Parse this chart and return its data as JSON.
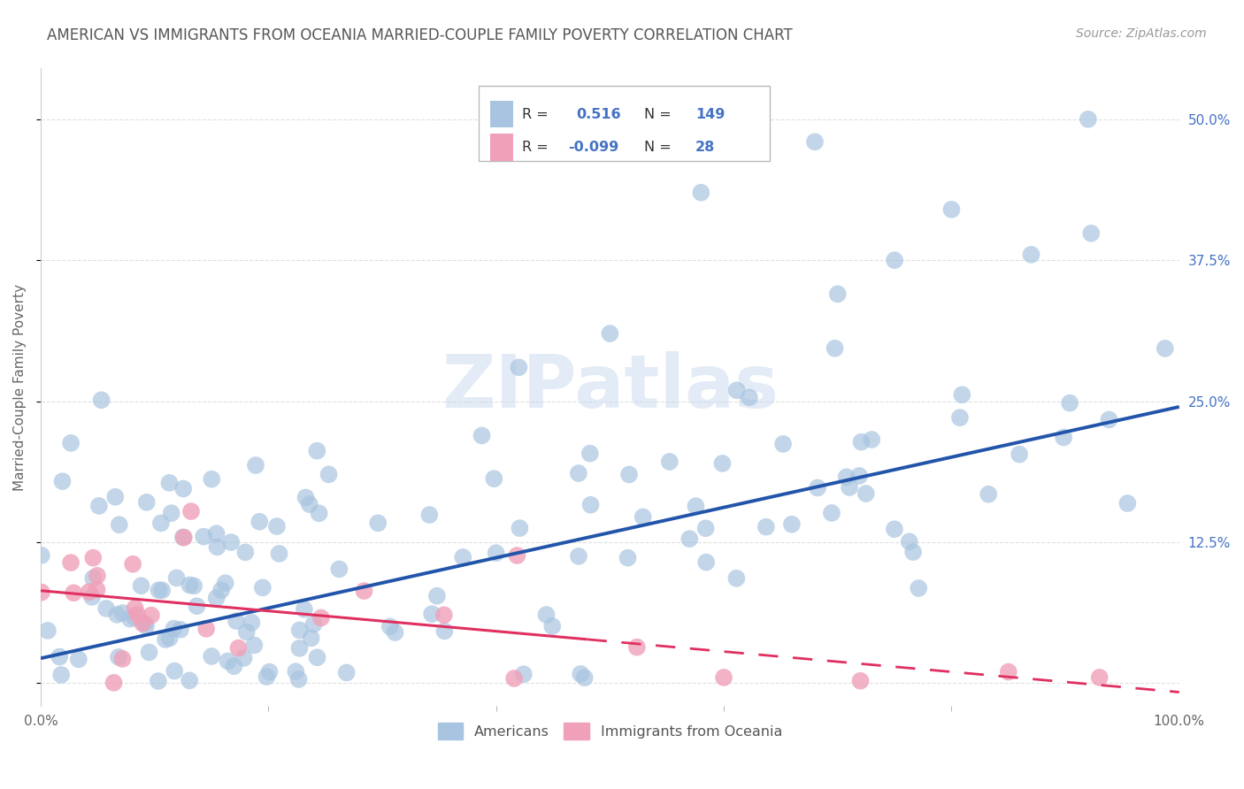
{
  "title": "AMERICAN VS IMMIGRANTS FROM OCEANIA MARRIED-COUPLE FAMILY POVERTY CORRELATION CHART",
  "source": "Source: ZipAtlas.com",
  "ylabel": "Married-Couple Family Poverty",
  "R_american": 0.516,
  "N_american": 149,
  "R_oceania": -0.099,
  "N_oceania": 28,
  "american_color": "#a8c4e0",
  "oceania_color": "#f0a0b8",
  "american_line_color": "#2255aa",
  "oceania_line_color": "#e03060",
  "background_color": "#ffffff",
  "grid_color": "#cccccc",
  "title_color": "#555555",
  "R_val_color": "#4472c4",
  "watermark_color": "#c8d8ee",
  "xlim": [
    0.0,
    1.0
  ],
  "ylim": [
    -0.02,
    0.545
  ],
  "ytick_vals": [
    0.0,
    0.125,
    0.25,
    0.375,
    0.5
  ],
  "ytick_labels": [
    "",
    "12.5%",
    "25.0%",
    "37.5%",
    "50.0%"
  ],
  "am_line_x0": 0.0,
  "am_line_y0": 0.022,
  "am_line_x1": 1.0,
  "am_line_y1": 0.245,
  "oc_line_x0": 0.0,
  "oc_line_y0": 0.082,
  "oc_line_x1": 1.0,
  "oc_line_y1": -0.008
}
